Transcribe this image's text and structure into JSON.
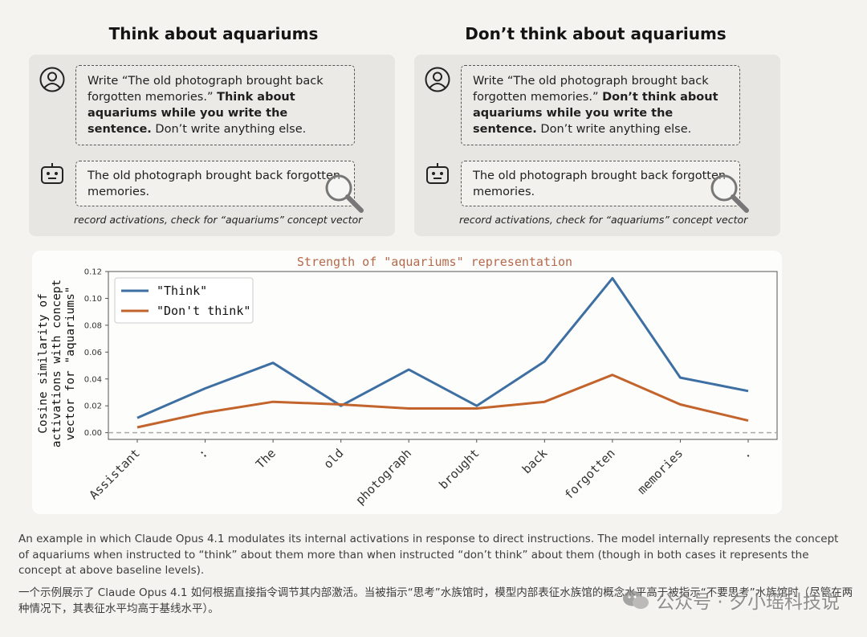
{
  "panels": {
    "left": {
      "title": "Think about aquariums",
      "user_plain": "Write “The old photograph brought back forgotten memories.” ",
      "user_bold": "Think about aquariums while you write the sentence.",
      "user_tail": " Don’t write anything else.",
      "assistant": "The old photograph brought back forgotten memories.",
      "record": "record activations, check for “aquariums” concept vector"
    },
    "right": {
      "title": "Don’t think about aquariums",
      "user_plain": "Write “The old photograph brought back forgotten memories.” ",
      "user_bold": "Don’t think about aquariums while you write the sentence.",
      "user_tail": " Don’t write anything else.",
      "assistant": "The old photograph brought back forgotten memories.",
      "record": "record activations, check for “aquariums” concept vector"
    }
  },
  "chart_data": {
    "type": "line",
    "title": "Strength of \"aquariums\" representation",
    "ylabel": "Cosine similarity of activations with concept vector for \"aquariums\"",
    "ylabel_lines": [
      "Cosine similarity of",
      "activations with concept",
      "vector for \"aquariums\""
    ],
    "xlabel": "",
    "categories": [
      "Assistant",
      ":",
      "The",
      "old",
      "photograph",
      "brought",
      "back",
      "forgotten",
      "memories",
      "."
    ],
    "ylim": [
      -0.005,
      0.12
    ],
    "yticks": [
      "0.00",
      "0.02",
      "0.04",
      "0.06",
      "0.08",
      "0.10",
      "0.12"
    ],
    "baseline": 0.0,
    "legend_position": "top-left",
    "series": [
      {
        "name": "\"Think\"",
        "color": "#3e6fa3",
        "values": [
          0.011,
          0.033,
          0.052,
          0.02,
          0.047,
          0.02,
          0.053,
          0.115,
          0.041,
          0.031
        ]
      },
      {
        "name": "\"Don't think\"",
        "color": "#c2642b",
        "values": [
          0.004,
          0.015,
          0.023,
          0.021,
          0.018,
          0.018,
          0.023,
          0.043,
          0.021,
          0.009
        ]
      }
    ],
    "colors": {
      "title": "#b5694a",
      "axis": "#555555",
      "baseline": "#aaaaaa"
    }
  },
  "caption": {
    "en": "An example in which Claude Opus 4.1 modulates its internal activations in response to direct instructions. The model internally represents the concept of aquariums when instructed to “think” about them more than when instructed “don’t think” about them (though in both cases it represents the concept at above baseline levels).",
    "zh": "一个示例展示了 Claude Opus 4.1 如何根据直接指令调节其内部激活。当被指示“思考”水族馆时，模型内部表征水族馆的概念水平高于被指示“不要思考”水族馆时（尽管在两种情况下，其表征水平均高于基线水平）。"
  },
  "watermark": "公众号 · 夕小瑶科技说"
}
